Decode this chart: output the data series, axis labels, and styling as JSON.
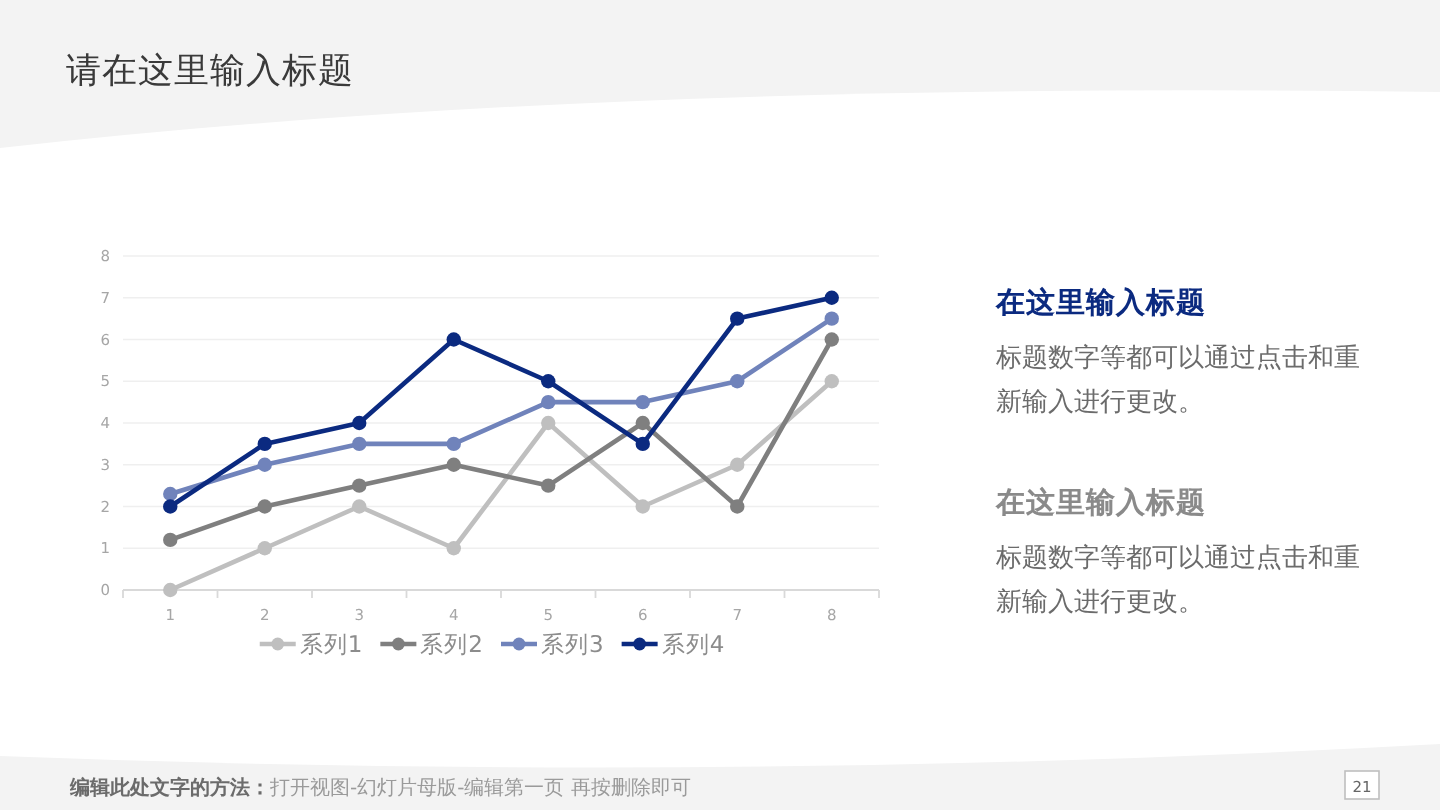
{
  "chart_data": {
    "type": "line",
    "title": "请在这里输入标题",
    "categories": [
      "1",
      "2",
      "3",
      "4",
      "5",
      "6",
      "7",
      "8"
    ],
    "series": [
      {
        "name": "系列1",
        "color": "#bfbfbf",
        "values": [
          0,
          1,
          2,
          1,
          4,
          2,
          3,
          5
        ]
      },
      {
        "name": "系列2",
        "color": "#7f7f7f",
        "values": [
          1.2,
          2,
          2.5,
          3,
          2.5,
          4,
          2,
          6
        ]
      },
      {
        "name": "系列3",
        "color": "#7083bb",
        "values": [
          2.3,
          3,
          3.5,
          3.5,
          4.5,
          4.5,
          5,
          6.5
        ]
      },
      {
        "name": "系列4",
        "color": "#0b2a80",
        "values": [
          2,
          3.5,
          4,
          6,
          5,
          3.5,
          6.5,
          7
        ]
      }
    ],
    "ylim": [
      0,
      8
    ],
    "yticks": [
      0,
      1,
      2,
      3,
      4,
      5,
      6,
      7,
      8
    ],
    "grid": "y",
    "legend": "bottom",
    "marker": "circle",
    "annotations": [
      "在这里输入标题",
      "标题数字等都可以通过点击和重新输入进行更改。",
      "在这里输入标题",
      "标题数字等都可以通过点击和重新输入进行更改。",
      "**编辑此处文字的方法：**打开视图-幻灯片母版-编辑第一页 再按删除即可",
      "21"
    ]
  }
}
